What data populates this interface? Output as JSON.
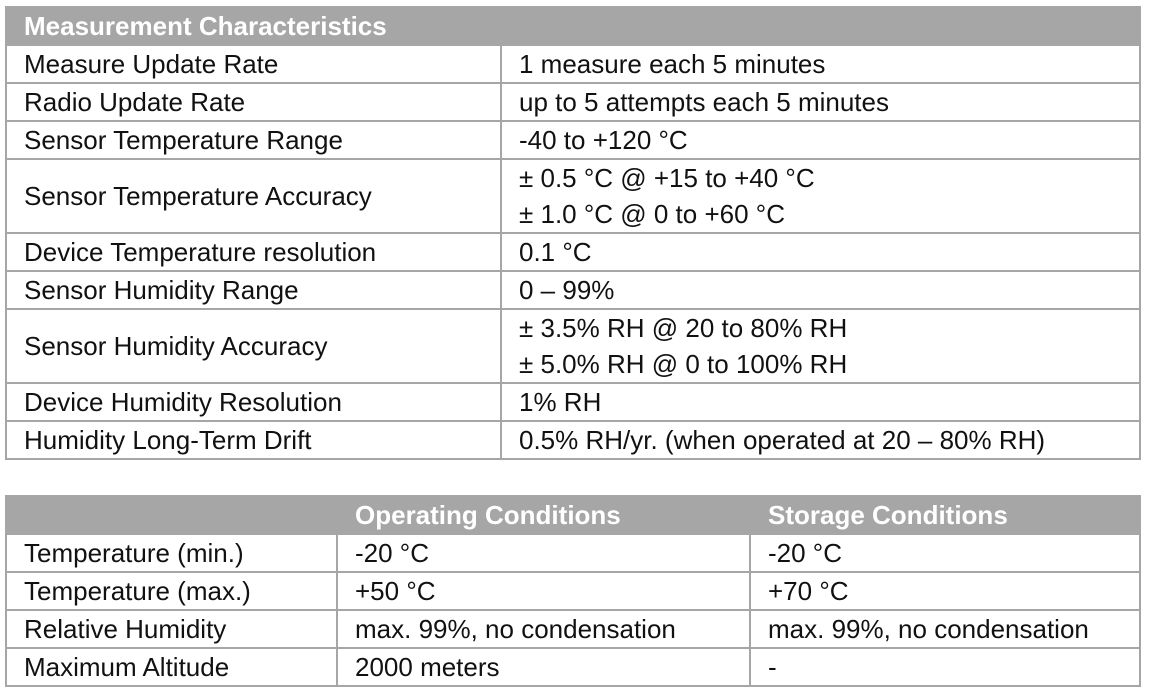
{
  "measurement_table": {
    "title": "Measurement Characteristics",
    "rows": [
      {
        "label": "Measure Update Rate",
        "value": [
          "1 measure each 5 minutes"
        ]
      },
      {
        "label": "Radio Update Rate",
        "value": [
          "up to 5 attempts each 5 minutes"
        ]
      },
      {
        "label": "Sensor Temperature Range",
        "value": [
          "-40 to +120 °C"
        ]
      },
      {
        "label": "Sensor Temperature Accuracy",
        "value": [
          "± 0.5 °C @ +15 to +40 °C",
          "± 1.0 °C @ 0 to +60 °C"
        ]
      },
      {
        "label": "Device Temperature resolution",
        "value": [
          "0.1 °C"
        ]
      },
      {
        "label": "Sensor Humidity Range",
        "value": [
          "0 – 99%"
        ]
      },
      {
        "label": "Sensor Humidity Accuracy",
        "value": [
          "± 3.5% RH @ 20 to 80% RH",
          "± 5.0% RH @ 0 to 100% RH"
        ]
      },
      {
        "label": "Device Humidity Resolution",
        "value": [
          "1% RH"
        ]
      },
      {
        "label": "Humidity Long-Term Drift",
        "value": [
          "0.5% RH/yr. (when operated at 20 – 80% RH)"
        ]
      }
    ]
  },
  "conditions_table": {
    "headers": [
      "",
      "Operating Conditions",
      "Storage Conditions"
    ],
    "rows": [
      {
        "label": "Temperature (min.)",
        "operating": "-20 °C",
        "storage": "-20 °C"
      },
      {
        "label": "Temperature (max.)",
        "operating": "+50 °C",
        "storage": "+70 °C"
      },
      {
        "label": "Relative Humidity",
        "operating": "max. 99%, no condensation",
        "storage": "max. 99%, no condensation"
      },
      {
        "label": "Maximum Altitude",
        "operating": "2000 meters",
        "storage": "-"
      }
    ]
  },
  "colors": {
    "header_bg": "#a6a6a6",
    "header_text": "#ffffff",
    "border": "#a6a6a6",
    "body_text": "#111111"
  }
}
